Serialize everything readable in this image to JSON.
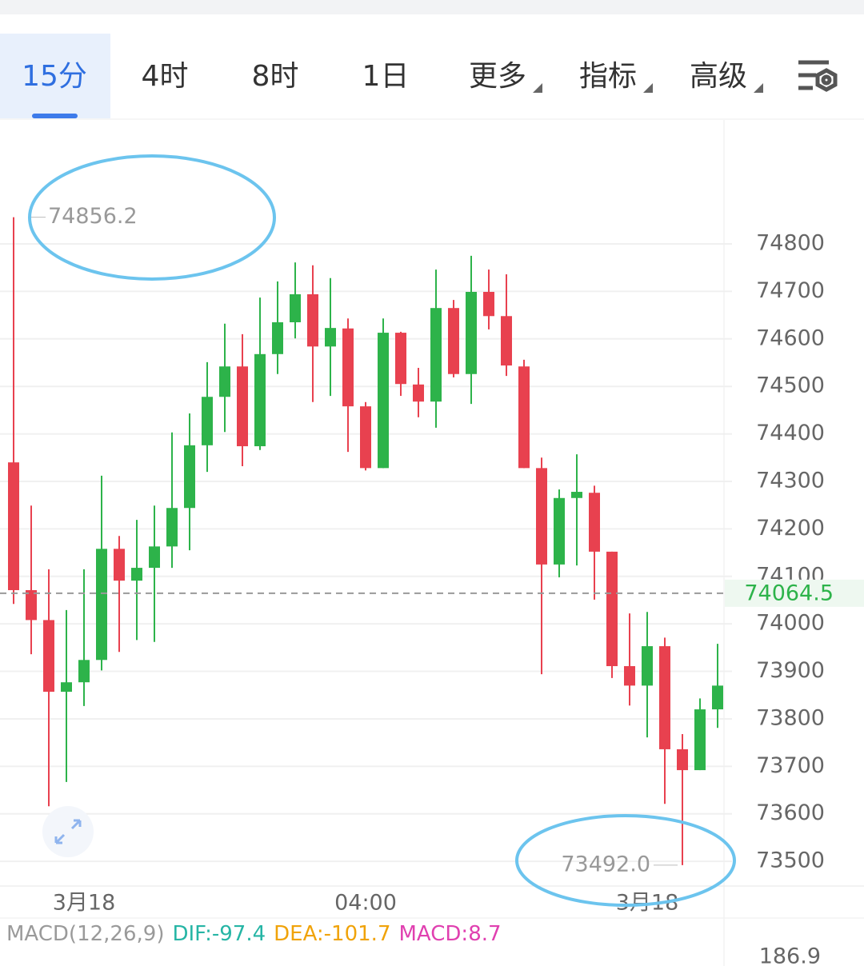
{
  "tabs": [
    "15分",
    "4时",
    "8时",
    "1日",
    "更多",
    "指标",
    "高级"
  ],
  "chart_data": {
    "type": "candlestick",
    "categories": [
      null,
      null,
      null,
      null,
      "3月18",
      null,
      null,
      null,
      null,
      null,
      null,
      null,
      null,
      null,
      null,
      null,
      null,
      null,
      null,
      null,
      "04:00",
      null,
      null,
      null,
      null,
      null,
      null,
      null,
      null,
      null,
      null,
      null,
      null,
      null,
      null,
      null,
      "3月18",
      null,
      null,
      null,
      null
    ],
    "open": [
      74340,
      74071,
      74008,
      73857,
      73877,
      73924,
      74158,
      74091,
      74118,
      74163,
      74244,
      74376,
      74478,
      74542,
      74374,
      74568,
      74635,
      74694,
      74584,
      74622,
      74458,
      74328,
      74613,
      74504,
      74468,
      74665,
      74526,
      74699,
      74648,
      74542,
      74328,
      74125,
      74265,
      74276,
      74152,
      73911,
      73870,
      73953,
      73736,
      73692,
      73820
    ],
    "high": [
      74856.2,
      74249,
      74115,
      74029,
      74115,
      74312,
      74185,
      74219,
      74249,
      74403,
      74443,
      74551,
      74632,
      74610,
      74687,
      74721,
      74761,
      74755,
      74728,
      74643,
      74467,
      74643,
      74615,
      74539,
      74746,
      74682,
      74775,
      74746,
      74736,
      74556,
      74350,
      74283,
      74357,
      74291,
      74152,
      74022,
      74025,
      73971,
      73768,
      73843,
      73958
    ],
    "low": [
      74042,
      73936,
      73616,
      73667,
      73827,
      73902,
      73941,
      73966,
      73962,
      74118,
      74155,
      74320,
      74404,
      74332,
      74366,
      74526,
      74601,
      74467,
      74480,
      74362,
      74323,
      74328,
      74480,
      74435,
      74413,
      74519,
      74463,
      74620,
      74522,
      74328,
      73894,
      74098,
      74123,
      74051,
      73886,
      73828,
      73761,
      73621,
      73492,
      73692,
      73781
    ],
    "close": [
      74071,
      74008,
      73857,
      73877,
      73924,
      74158,
      74091,
      74118,
      74163,
      74244,
      74376,
      74478,
      74542,
      74374,
      74568,
      74635,
      74694,
      74584,
      74623,
      74458,
      74328,
      74613,
      74505,
      74468,
      74665,
      74526,
      74699,
      74648,
      74544,
      74328,
      74125,
      74265,
      74278,
      74152,
      73911,
      73870,
      73953,
      73736,
      73692,
      73820,
      73870
    ],
    "up_color": "#2db34a",
    "down_color": "#e8414f",
    "high_label": "74856.2",
    "low_label": "73492.0",
    "current_price": 74064.5,
    "ylim": [
      73448,
      75061
    ],
    "yticks": [
      73500,
      73600,
      73700,
      73800,
      73900,
      74000,
      74100,
      74200,
      74300,
      74400,
      74500,
      74600,
      74700,
      74800
    ],
    "grid": true,
    "macd": {
      "legend": [
        "MACD(12,26,9)",
        "DIF:-97.4",
        "DEA:-101.7",
        "MACD:8.7"
      ],
      "legend_colors": [
        "#9a9a9a",
        "#26b5a5",
        "#f0a30a",
        "#e040b0"
      ],
      "top_label": "186.9"
    }
  }
}
